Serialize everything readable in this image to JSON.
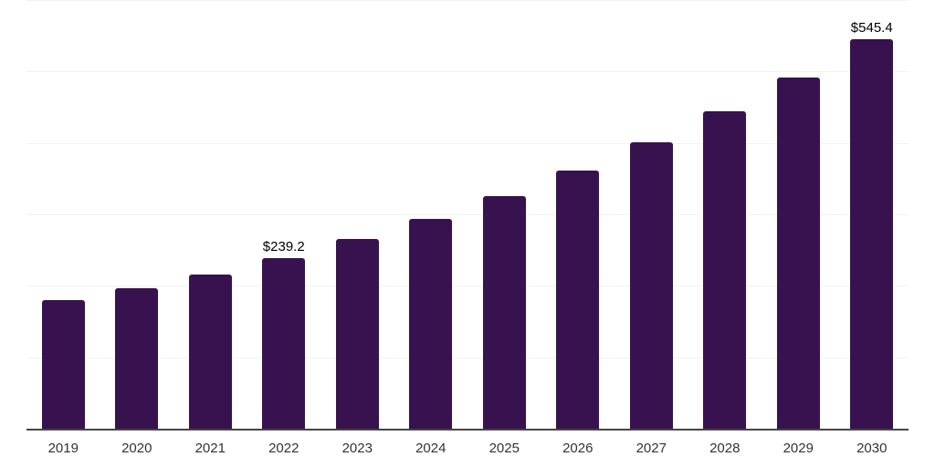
{
  "chart_data": {
    "type": "bar",
    "title": "",
    "xlabel": "",
    "ylabel": "",
    "categories": [
      "2019",
      "2020",
      "2021",
      "2022",
      "2023",
      "2024",
      "2025",
      "2026",
      "2027",
      "2028",
      "2029",
      "2030"
    ],
    "values": [
      180.3,
      196.9,
      216.1,
      239.2,
      265.2,
      294.0,
      325.9,
      361.3,
      400.5,
      443.9,
      492.1,
      545.4
    ],
    "bar_labels": [
      "",
      "",
      "",
      "$239.2",
      "",
      "",
      "",
      "",
      "",
      "",
      "",
      "$545.4"
    ],
    "ylim": [
      0,
      600
    ],
    "gridline_values": [
      100,
      200,
      300,
      400,
      500,
      600
    ],
    "grid": "horizontal",
    "legend": "none",
    "colors": {
      "bar": "#38124e",
      "background": "#ffffff",
      "gridline": "#f3f3f3",
      "axis_line": "#454545",
      "tick_label": "#333333",
      "value_label": "#000000"
    }
  }
}
